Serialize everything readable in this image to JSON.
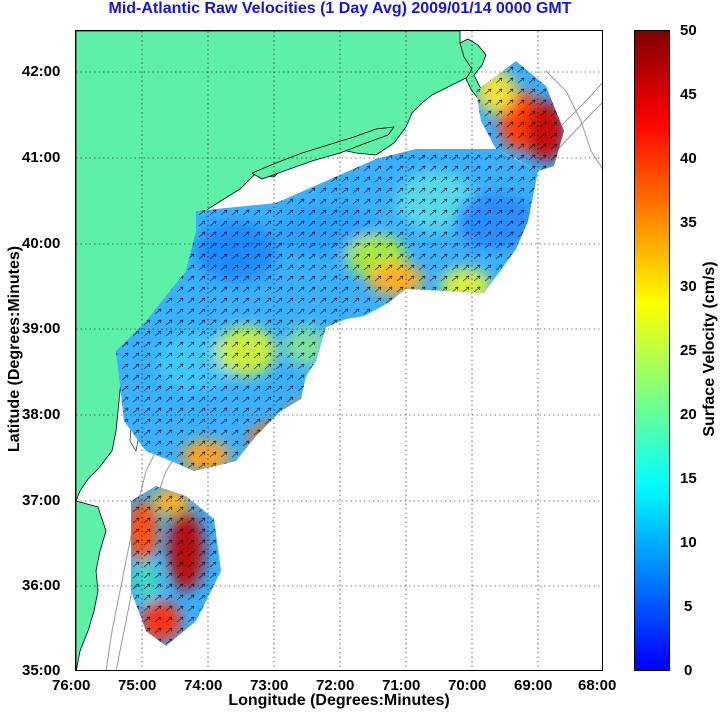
{
  "title": "Mid-Atlantic Raw Velocities (1 Day Avg) 2009/01/14 0000 GMT",
  "axes": {
    "xlabel": "Longitude (Degrees:Minutes)",
    "ylabel": "Latitude (Degrees:Minutes)",
    "x_ticks": [
      "76:00",
      "75:00",
      "74:00",
      "73:00",
      "72:00",
      "71:00",
      "70:00",
      "69:00",
      "68:00"
    ],
    "y_ticks": [
      "42:00",
      "41:00",
      "40:00",
      "39:00",
      "38:00",
      "37:00",
      "36:00",
      "35:00"
    ],
    "grid": "dotted"
  },
  "colorbar": {
    "label": "Surface Velocity (cm/s)",
    "ticks": [
      "50",
      "45",
      "40",
      "35",
      "30",
      "25",
      "20",
      "15",
      "10",
      "5",
      "0"
    ],
    "range": [
      0,
      50
    ],
    "colormap": "jet"
  },
  "colors": {
    "title": "#1515d8",
    "land": "#5ff0a8",
    "coast": "#000000",
    "bathymetry": "#9a9a9a"
  }
}
